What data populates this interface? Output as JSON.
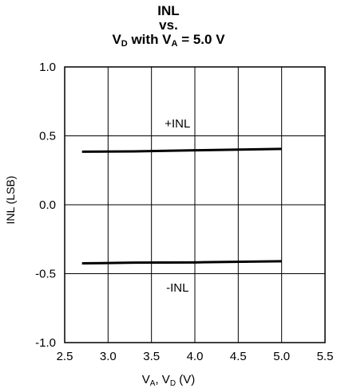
{
  "title": {
    "line1": "INL",
    "line2": "vs.",
    "line3_prefix": "V",
    "line3_sub1": "D",
    "line3_mid": " with V",
    "line3_sub2": "A",
    "line3_suffix": " = 5.0 V"
  },
  "axes": {
    "ylabel": "INL (LSB)",
    "xlabel_v1": "V",
    "xlabel_s1": "A",
    "xlabel_mid": ", V",
    "xlabel_s2": "D",
    "xlabel_unit": " (V)"
  },
  "chart_data": {
    "type": "line",
    "xlim": [
      2.5,
      5.5
    ],
    "ylim": [
      -1.0,
      1.0
    ],
    "xticks": [
      "2.5",
      "3.0",
      "3.5",
      "4.0",
      "4.5",
      "5.0",
      "5.5"
    ],
    "xtick_values": [
      2.5,
      3.0,
      3.5,
      4.0,
      4.5,
      5.0,
      5.5
    ],
    "yticks": [
      "1.0",
      "0.5",
      "0.0",
      "-0.5",
      "-1.0"
    ],
    "ytick_values": [
      1.0,
      0.5,
      0.0,
      -0.5,
      -1.0
    ],
    "grid": true,
    "series": [
      {
        "name": "+INL",
        "x": [
          2.7,
          3.3,
          4.0,
          5.0
        ],
        "y": [
          0.385,
          0.387,
          0.395,
          0.405
        ]
      },
      {
        "name": "-INL",
        "x": [
          2.7,
          3.3,
          4.0,
          5.0
        ],
        "y": [
          -0.425,
          -0.42,
          -0.418,
          -0.41
        ]
      }
    ],
    "annotations": [
      {
        "text": "+INL",
        "x": 3.8,
        "y": 0.59
      },
      {
        "text": "-INL",
        "x": 3.8,
        "y": -0.6
      }
    ]
  }
}
